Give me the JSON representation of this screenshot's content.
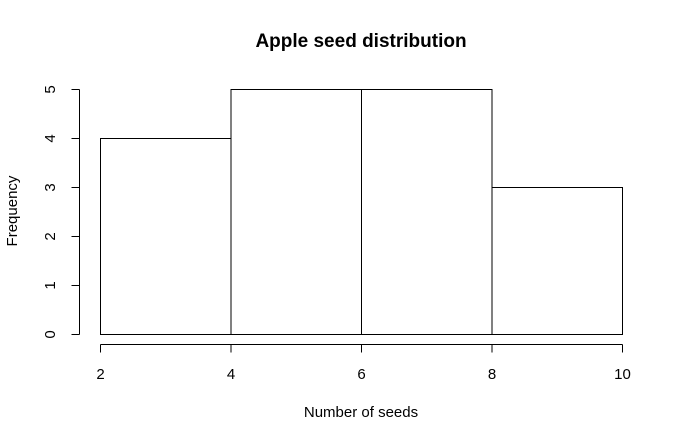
{
  "chart_data": {
    "type": "bar",
    "subtype": "histogram",
    "title": "Apple seed distribution",
    "xlabel": "Number of seeds",
    "ylabel": "Frequency",
    "bins": [
      {
        "start": 2,
        "end": 4,
        "count": 4
      },
      {
        "start": 4,
        "end": 6,
        "count": 5
      },
      {
        "start": 6,
        "end": 8,
        "count": 5
      },
      {
        "start": 8,
        "end": 10,
        "count": 3
      }
    ],
    "categories": [
      "2-4",
      "4-6",
      "6-8",
      "8-10"
    ],
    "values": [
      4,
      5,
      5,
      3
    ],
    "x_ticks": [
      2,
      4,
      6,
      8,
      10
    ],
    "y_ticks": [
      0,
      1,
      2,
      3,
      4,
      5
    ],
    "xlim": [
      2,
      10
    ],
    "ylim": [
      0,
      5
    ],
    "grid": false,
    "legend": "none",
    "colors": {
      "bar_fill": "#ffffff",
      "bar_stroke": "#000000",
      "background": "#ffffff"
    }
  }
}
